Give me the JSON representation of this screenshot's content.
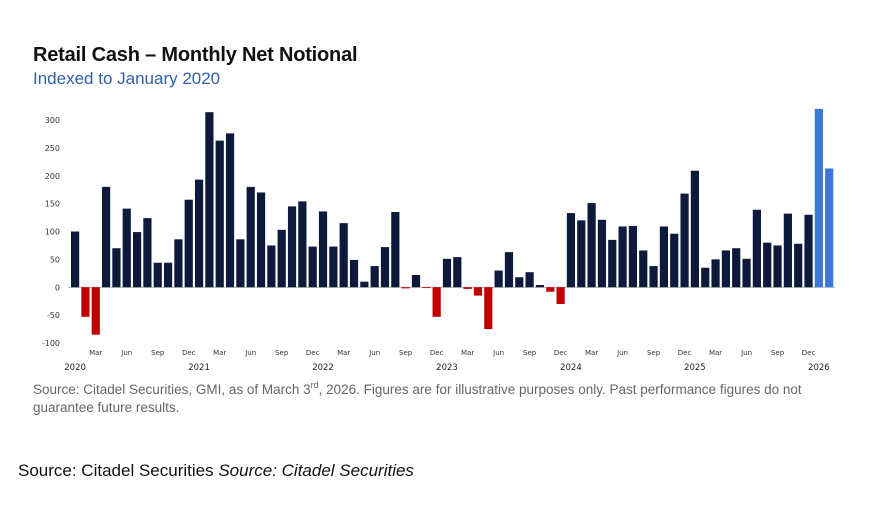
{
  "colors": {
    "positive": "#0d1a3c",
    "negative": "#c00000",
    "highlight": "#3b78d8",
    "subtitle": "#2f5fa8"
  },
  "footnote": {
    "before": "Source: Citadel Securities, GMI, as of March 3",
    "sup": "rd",
    "after": ", 2026. Figures are for illustrative purposes only. Past performance figures do not guarantee future results."
  },
  "source_line": {
    "plain": "Source: Citadel Securities ",
    "italic": "Source: Citadel Securities"
  },
  "chart_data": {
    "type": "bar",
    "title": "Retail Cash – Monthly Net Notional",
    "subtitle": "Indexed to January 2020",
    "xlabel": "",
    "ylabel": "",
    "ylim": [
      -100,
      300
    ],
    "yticks": [
      300,
      250,
      200,
      150,
      100,
      50,
      0,
      -50,
      -100
    ],
    "grid": false,
    "legend": "none",
    "categories": [
      "Jan 2020",
      "Feb 2020",
      "Mar 2020",
      "Apr 2020",
      "May 2020",
      "Jun 2020",
      "Jul 2020",
      "Aug 2020",
      "Sep 2020",
      "Oct 2020",
      "Nov 2020",
      "Dec 2020",
      "Jan 2021",
      "Feb 2021",
      "Mar 2021",
      "Apr 2021",
      "May 2021",
      "Jun 2021",
      "Jul 2021",
      "Aug 2021",
      "Sep 2021",
      "Oct 2021",
      "Nov 2021",
      "Dec 2021",
      "Jan 2022",
      "Feb 2022",
      "Mar 2022",
      "Apr 2022",
      "May 2022",
      "Jun 2022",
      "Jul 2022",
      "Aug 2022",
      "Sep 2022",
      "Oct 2022",
      "Nov 2022",
      "Dec 2022",
      "Jan 2023",
      "Feb 2023",
      "Mar 2023",
      "Apr 2023",
      "May 2023",
      "Jun 2023",
      "Jul 2023",
      "Aug 2023",
      "Sep 2023",
      "Oct 2023",
      "Nov 2023",
      "Dec 2023",
      "Jan 2024",
      "Feb 2024",
      "Mar 2024",
      "Apr 2024",
      "May 2024",
      "Jun 2024",
      "Jul 2024",
      "Aug 2024",
      "Sep 2024",
      "Oct 2024",
      "Nov 2024",
      "Dec 2024",
      "Jan 2025",
      "Feb 2025",
      "Mar 2025",
      "Apr 2025",
      "May 2025",
      "Jun 2025",
      "Jul 2025",
      "Aug 2025",
      "Sep 2025",
      "Oct 2025",
      "Nov 2025",
      "Dec 2025",
      "Jan 2026",
      "Feb 2026"
    ],
    "values": [
      100,
      -53,
      -85,
      180,
      70,
      141,
      99,
      124,
      44,
      44,
      86,
      157,
      193,
      314,
      263,
      276,
      86,
      180,
      170,
      75,
      103,
      145,
      154,
      73,
      136,
      73,
      115,
      49,
      10,
      38,
      72,
      135,
      -2,
      22,
      -1,
      -53,
      51,
      54,
      -3,
      -15,
      -75,
      30,
      63,
      18,
      27,
      4,
      -8,
      -30,
      133,
      120,
      151,
      121,
      85,
      109,
      110,
      66,
      38,
      109,
      96,
      168,
      209,
      35,
      50,
      66,
      70,
      51,
      139,
      80,
      75,
      132,
      78,
      130,
      320,
      213
    ],
    "highlighted_categories": [
      "Jan 2026",
      "Feb 2026"
    ],
    "x_tick_labels": [
      {
        "index": 2,
        "label": "Mar"
      },
      {
        "index": 5,
        "label": "Jun"
      },
      {
        "index": 8,
        "label": "Sep"
      },
      {
        "index": 11,
        "label": "Dec"
      },
      {
        "index": 14,
        "label": "Mar"
      },
      {
        "index": 17,
        "label": "Jun"
      },
      {
        "index": 20,
        "label": "Sep"
      },
      {
        "index": 23,
        "label": "Dec"
      },
      {
        "index": 26,
        "label": "Mar"
      },
      {
        "index": 29,
        "label": "Jun"
      },
      {
        "index": 32,
        "label": "Sep"
      },
      {
        "index": 35,
        "label": "Dec"
      },
      {
        "index": 38,
        "label": "Mar"
      },
      {
        "index": 41,
        "label": "Jun"
      },
      {
        "index": 44,
        "label": "Sep"
      },
      {
        "index": 47,
        "label": "Dec"
      },
      {
        "index": 50,
        "label": "Mar"
      },
      {
        "index": 53,
        "label": "Jun"
      },
      {
        "index": 56,
        "label": "Sep"
      },
      {
        "index": 59,
        "label": "Dec"
      },
      {
        "index": 62,
        "label": "Mar"
      },
      {
        "index": 65,
        "label": "Jun"
      },
      {
        "index": 68,
        "label": "Sep"
      },
      {
        "index": 71,
        "label": "Dec"
      }
    ],
    "year_labels": [
      {
        "index": 0,
        "label": "2020"
      },
      {
        "index": 12,
        "label": "2021"
      },
      {
        "index": 24,
        "label": "2022"
      },
      {
        "index": 36,
        "label": "2023"
      },
      {
        "index": 48,
        "label": "2024"
      },
      {
        "index": 60,
        "label": "2025"
      },
      {
        "index": 72,
        "label": "2026"
      }
    ]
  }
}
